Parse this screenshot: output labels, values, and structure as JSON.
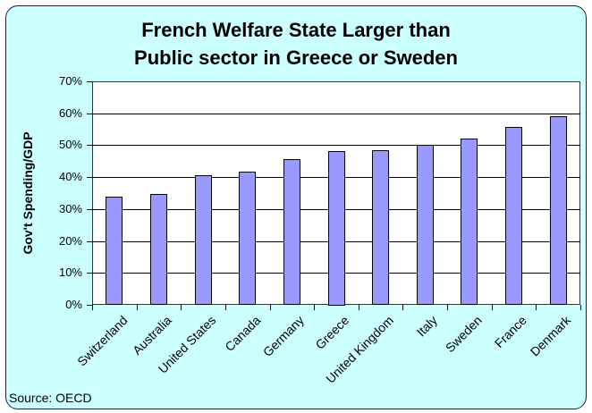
{
  "chart_data": {
    "type": "bar",
    "title": "French Welfare State Larger than Public sector in Greece or Sweden",
    "title_lines": [
      "French Welfare State Larger than",
      "Public sector in Greece or Sweden"
    ],
    "xlabel": "",
    "ylabel": "Gov't Spending/GDP",
    "ylim": [
      0,
      70
    ],
    "yticks": [
      "0%",
      "10%",
      "20%",
      "30%",
      "40%",
      "50%",
      "60%",
      "70%"
    ],
    "grid": true,
    "legend": null,
    "categories": [
      "Switzerland",
      "Australia",
      "United States",
      "Canada",
      "Germany",
      "Greece",
      "United Kingdom",
      "Italy",
      "Sweden",
      "France",
      "Denmark"
    ],
    "values": [
      34.0,
      34.7,
      40.6,
      41.6,
      45.6,
      48.3,
      48.5,
      50.0,
      52.0,
      55.8,
      59.2
    ],
    "bar_color": "#9999ff",
    "background_color": "#ccffff",
    "annotation": "Source: OECD"
  }
}
